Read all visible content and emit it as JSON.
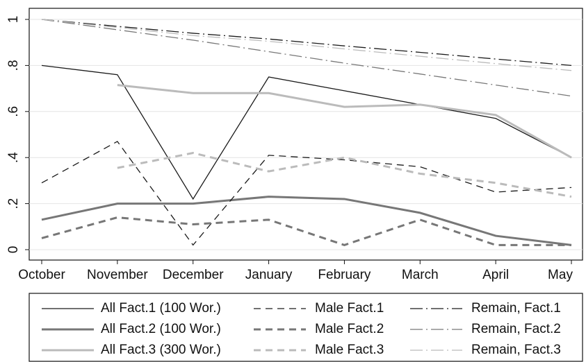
{
  "chart_data": {
    "type": "line",
    "categories": [
      "October",
      "November",
      "December",
      "January",
      "February",
      "March",
      "April",
      "May"
    ],
    "ylim": [
      0,
      1
    ],
    "yticks": [
      0,
      {
        "value": 0.2,
        "label": ".2"
      },
      {
        "value": 0.4,
        "label": ".4"
      },
      {
        "value": 0.6,
        "label": ".6"
      },
      {
        "value": 0.8,
        "label": ".8"
      },
      1
    ],
    "grid": true,
    "series": [
      {
        "name": "All Fact.1 (100 Wor.)",
        "color": "#1a1a1a",
        "style": "solid",
        "width": 1.3,
        "values": [
          0.8,
          0.76,
          0.22,
          0.75,
          0.69,
          0.63,
          0.57,
          0.4
        ]
      },
      {
        "name": "All Fact.2 (100 Wor.)",
        "color": "#777777",
        "style": "solid",
        "width": 3,
        "values": [
          0.13,
          0.2,
          0.2,
          0.23,
          0.22,
          0.16,
          0.06,
          0.02
        ]
      },
      {
        "name": "All Fact.3 (300 Wor.)",
        "color": "#bbbbbb",
        "style": "solid",
        "width": 3,
        "values": [
          null,
          0.715,
          0.68,
          0.68,
          0.62,
          0.63,
          0.585,
          0.4
        ]
      },
      {
        "name": "Male Fact.1",
        "color": "#1a1a1a",
        "style": "dash",
        "width": 1.3,
        "values": [
          0.29,
          0.47,
          0.02,
          0.41,
          0.39,
          0.36,
          0.25,
          0.27
        ]
      },
      {
        "name": "Male Fact.2",
        "color": "#777777",
        "style": "dash",
        "width": 3,
        "values": [
          0.05,
          0.14,
          0.11,
          0.13,
          0.02,
          0.13,
          0.02,
          0.02
        ]
      },
      {
        "name": "Male Fact.3",
        "color": "#bbbbbb",
        "style": "dash",
        "width": 3,
        "values": [
          null,
          0.355,
          0.42,
          0.34,
          0.4,
          0.33,
          0.29,
          0.23
        ]
      },
      {
        "name": "Remain, Fact.1",
        "color": "#1a1a1a",
        "style": "dashdot",
        "width": 1.3,
        "values": [
          1,
          0.97,
          0.94,
          0.915,
          0.885,
          0.857,
          0.828,
          0.8
        ]
      },
      {
        "name": "Remain, Fact.2",
        "color": "#777777",
        "style": "dashdot",
        "width": 1.3,
        "values": [
          1,
          0.955,
          0.91,
          0.86,
          0.81,
          0.763,
          0.715,
          0.667
        ]
      },
      {
        "name": "Remain, Fact.3",
        "color": "#bbbbbb",
        "style": "dashdot",
        "width": 1.3,
        "values": [
          1,
          0.965,
          0.93,
          0.905,
          0.872,
          0.84,
          0.808,
          0.778
        ]
      }
    ]
  }
}
